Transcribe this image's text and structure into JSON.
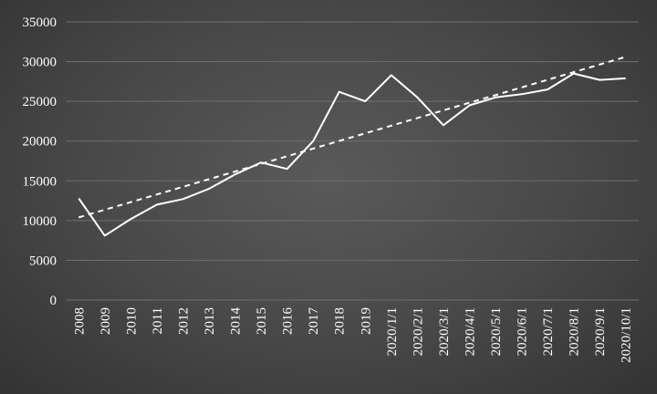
{
  "chart_data": {
    "type": "line",
    "title": "",
    "xlabel": "",
    "ylabel": "",
    "ylim": [
      0,
      35000
    ],
    "yticks": [
      0,
      5000,
      10000,
      15000,
      20000,
      25000,
      30000,
      35000
    ],
    "grid": true,
    "legend": "none",
    "categories": [
      "2008",
      "2009",
      "2010",
      "2011",
      "2012",
      "2013",
      "2014",
      "2015",
      "2016",
      "2017",
      "2018",
      "2019",
      "2020/1/1",
      "2020/2/1",
      "2020/3/1",
      "2020/4/1",
      "2020/5/1",
      "2020/6/1",
      "2020/7/1",
      "2020/8/1",
      "2020/9/1",
      "2020/10/1"
    ],
    "series": [
      {
        "values": [
          12800,
          8100,
          10200,
          12000,
          12700,
          14000,
          15800,
          17300,
          16500,
          20000,
          26200,
          25000,
          28300,
          25500,
          22000,
          24500,
          25500,
          25900,
          26500,
          28500,
          27700,
          27900
        ],
        "color": "#ffffff",
        "style": "solid"
      }
    ],
    "trendline": {
      "type": "linear",
      "style": "dashed",
      "color": "#ffffff",
      "start": 10400,
      "end": 30600
    }
  }
}
